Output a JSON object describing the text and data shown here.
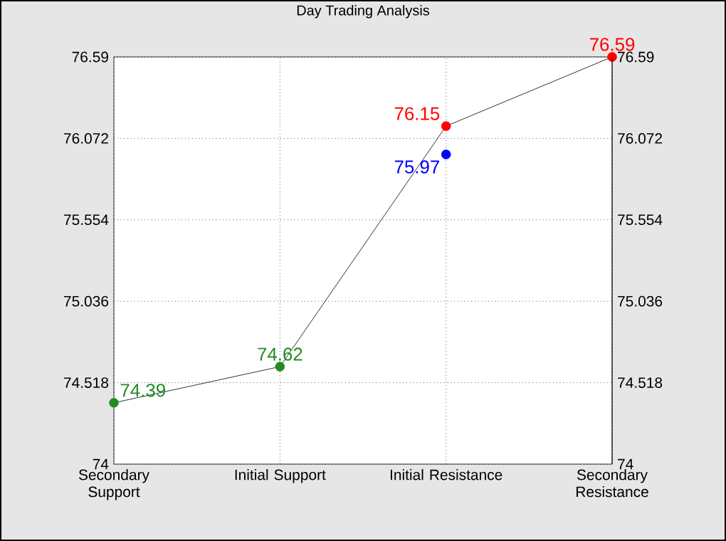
{
  "chart_data": {
    "type": "line",
    "title": "Day Trading Analysis",
    "categories": [
      "Secondary Support",
      "Initial Support",
      "Initial Resistance",
      "Secondary Resistance"
    ],
    "series": [
      {
        "color": "#000000",
        "values": [
          74.39,
          74.62,
          76.15,
          76.59
        ],
        "colors": [
          "#228b22",
          "#228b22",
          "#ff0000",
          "#ff0000"
        ]
      },
      {
        "type": "scatter",
        "x": [
          "Initial Resistance"
        ],
        "color": "#0000ff",
        "values": [
          75.97
        ]
      }
    ],
    "ylim": [
      74,
      76.59
    ],
    "yticks": [
      74,
      74.518,
      75.036,
      75.554,
      76.072,
      76.59
    ],
    "y2lim": [
      74,
      76.59
    ],
    "y2ticks": [
      74,
      74.518,
      75.036,
      75.554,
      76.072,
      76.59
    ],
    "grid": true,
    "marker": "circle",
    "line_style": "solid",
    "data_labels": true
  }
}
